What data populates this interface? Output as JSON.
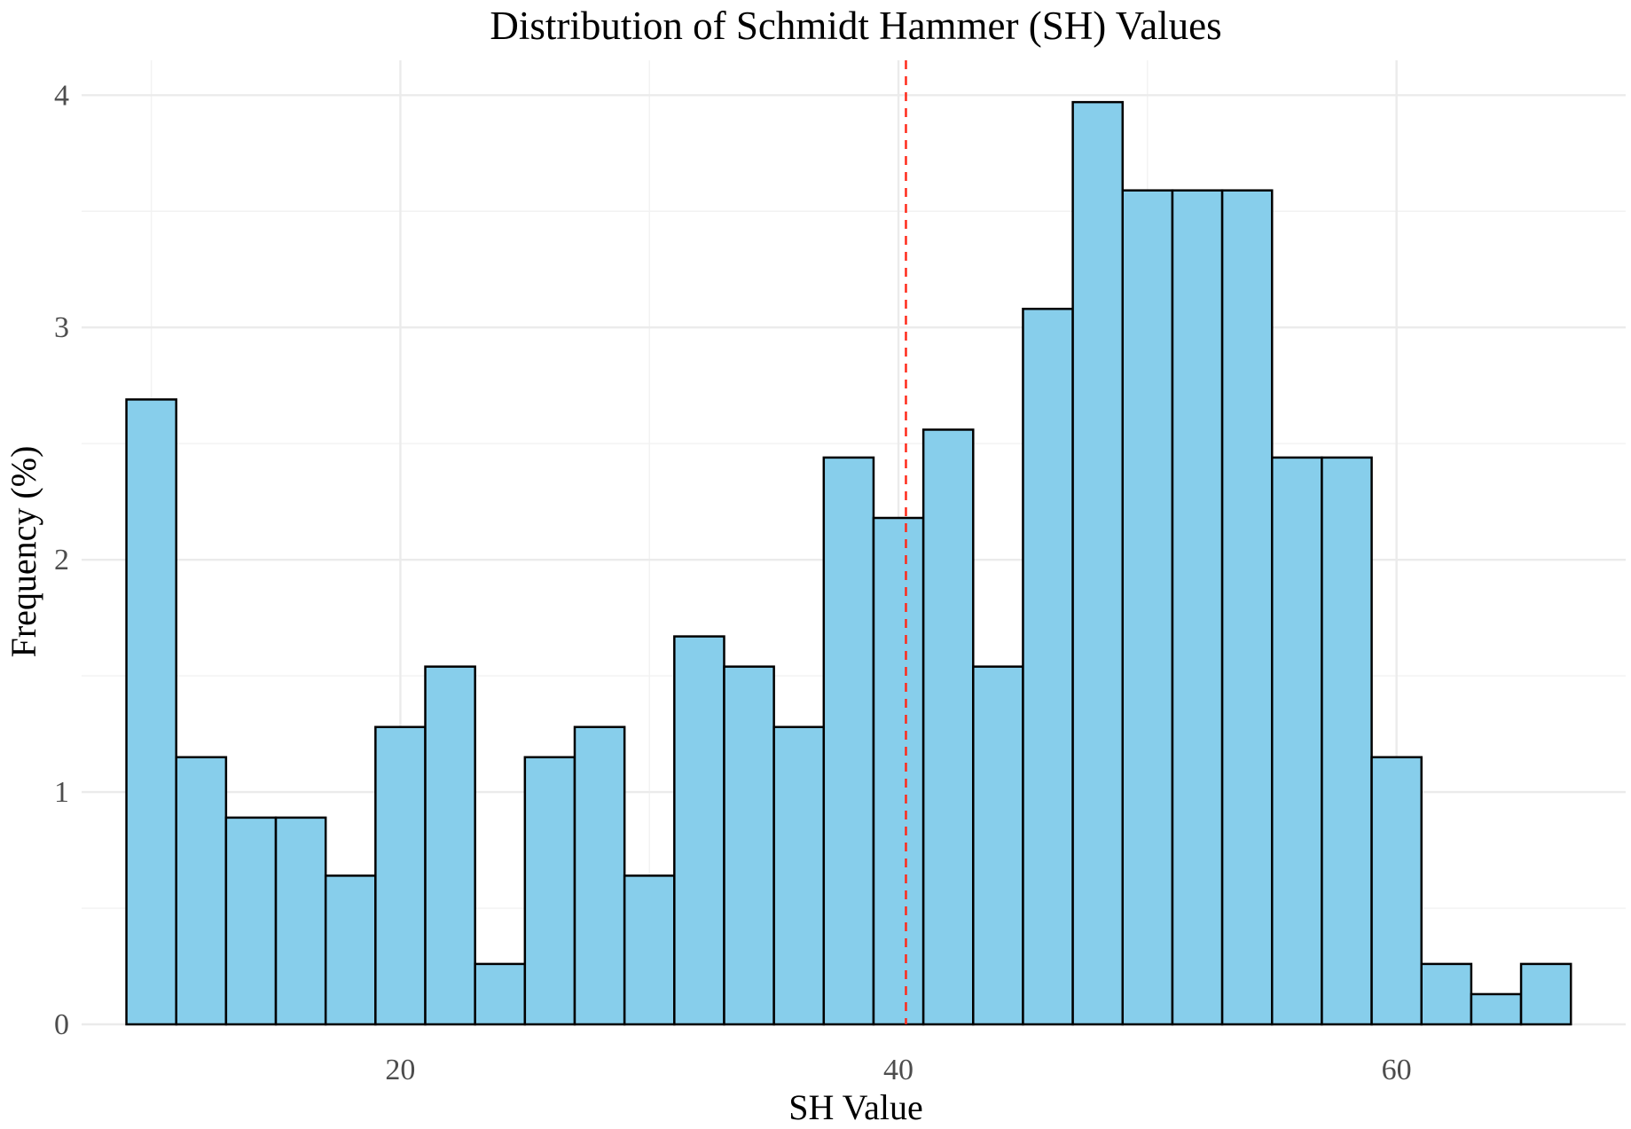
{
  "chart_data": {
    "type": "bar",
    "title": "Distribution of Schmidt Hammer (SH) Values",
    "xlabel": "SH Value",
    "ylabel": "Frequency (%)",
    "x_ticks": [
      20,
      40,
      60
    ],
    "y_ticks": [
      0,
      1,
      2,
      3,
      4
    ],
    "xlim": [
      7.2,
      69.2
    ],
    "ylim": [
      0,
      4.15
    ],
    "grid": true,
    "bin_width": 2,
    "bins": [
      {
        "x0": 9,
        "x1": 11,
        "value": 2.69
      },
      {
        "x0": 11,
        "x1": 13,
        "value": 1.15
      },
      {
        "x0": 13,
        "x1": 15,
        "value": 0.89
      },
      {
        "x0": 15,
        "x1": 17,
        "value": 0.89
      },
      {
        "x0": 17,
        "x1": 19,
        "value": 0.64
      },
      {
        "x0": 19,
        "x1": 21,
        "value": 1.28
      },
      {
        "x0": 21,
        "x1": 23,
        "value": 1.54
      },
      {
        "x0": 23,
        "x1": 25,
        "value": 0.26
      },
      {
        "x0": 25,
        "x1": 27,
        "value": 1.15
      },
      {
        "x0": 27,
        "x1": 29,
        "value": 1.28
      },
      {
        "x0": 29,
        "x1": 31,
        "value": 0.64
      },
      {
        "x0": 31,
        "x1": 33,
        "value": 1.67
      },
      {
        "x0": 33,
        "x1": 35,
        "value": 1.54
      },
      {
        "x0": 35,
        "x1": 37,
        "value": 1.28
      },
      {
        "x0": 37,
        "x1": 39,
        "value": 2.44
      },
      {
        "x0": 39,
        "x1": 41,
        "value": 2.18
      },
      {
        "x0": 41,
        "x1": 43,
        "value": 2.56
      },
      {
        "x0": 43,
        "x1": 45,
        "value": 1.54
      },
      {
        "x0": 45,
        "x1": 47,
        "value": 3.08
      },
      {
        "x0": 47,
        "x1": 49,
        "value": 3.97
      },
      {
        "x0": 49,
        "x1": 51,
        "value": 3.59
      },
      {
        "x0": 51,
        "x1": 53,
        "value": 3.59
      },
      {
        "x0": 53,
        "x1": 55,
        "value": 3.59
      },
      {
        "x0": 55,
        "x1": 57,
        "value": 2.44
      },
      {
        "x0": 57,
        "x1": 59,
        "value": 2.44
      },
      {
        "x0": 59,
        "x1": 61,
        "value": 1.15
      },
      {
        "x0": 61,
        "x1": 63,
        "value": 0.26
      },
      {
        "x0": 63,
        "x1": 65,
        "value": 0.13
      },
      {
        "x0": 65,
        "x1": 67,
        "value": 0.26
      }
    ],
    "reference_line": {
      "x": 40.3,
      "style": "dashed"
    },
    "colors": {
      "bar_fill": "#87ceeb",
      "bar_stroke": "#000000",
      "reference_line": "#ff2a1a",
      "grid": "#ebebeb"
    }
  }
}
